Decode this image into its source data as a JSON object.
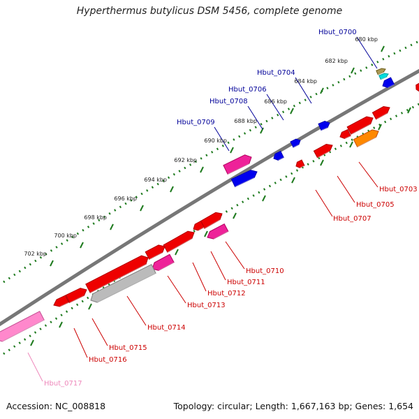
{
  "title": "Hyperthermus butylicus DSM 5456, complete genome",
  "footer": {
    "accession": "Accession: NC_008818",
    "summary": "Topology: circular; Length: 1,667,163 bp; Genes: 1,654"
  },
  "colors": {
    "backbone": "#777777",
    "dotted_track": "#1e7a1e",
    "label_forward": "#000099",
    "label_reverse": "#cc0000",
    "label_faded": "#ee88bb"
  },
  "ticks": [
    {
      "label": "680 kbp"
    },
    {
      "label": "682 kbp"
    },
    {
      "label": "684 kbp"
    },
    {
      "label": "686 kbp"
    },
    {
      "label": "688 kbp"
    },
    {
      "label": "690 kbp"
    },
    {
      "label": "692 kbp"
    },
    {
      "label": "694 kbp"
    },
    {
      "label": "696 kbp"
    },
    {
      "label": "698 kbp"
    },
    {
      "label": "700 kbp"
    },
    {
      "label": "702 kbp"
    }
  ],
  "forward_labels": [
    {
      "name": "Hbut_0700"
    },
    {
      "name": "Hbut_0704"
    },
    {
      "name": "Hbut_0706"
    },
    {
      "name": "Hbut_0708"
    },
    {
      "name": "Hbut_0709"
    }
  ],
  "reverse_labels": [
    {
      "name": "Hbut_0703"
    },
    {
      "name": "Hbut_0705"
    },
    {
      "name": "Hbut_0707"
    },
    {
      "name": "Hbut_0710"
    },
    {
      "name": "Hbut_0711"
    },
    {
      "name": "Hbut_0712"
    },
    {
      "name": "Hbut_0713"
    },
    {
      "name": "Hbut_0714"
    },
    {
      "name": "Hbut_0715"
    },
    {
      "name": "Hbut_0716"
    },
    {
      "name": "Hbut_0717"
    }
  ]
}
